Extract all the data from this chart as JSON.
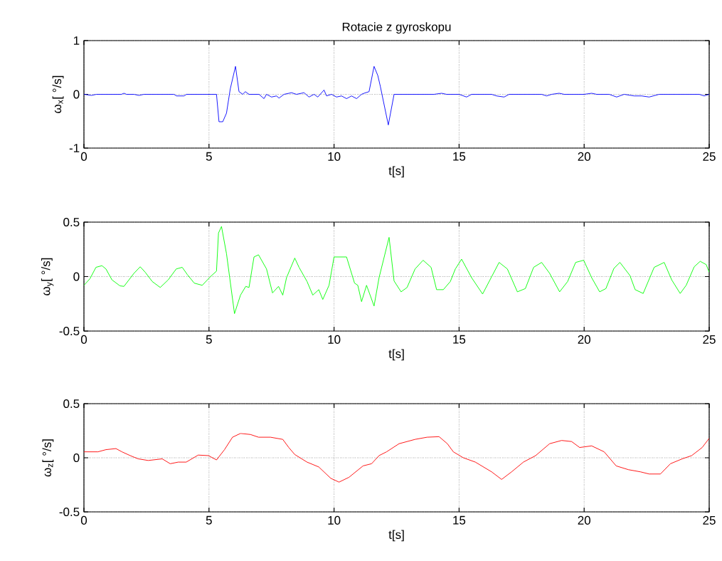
{
  "chart_data": [
    {
      "type": "line",
      "title": "Rotacie z gyroskopu",
      "xlabel": "t[s]",
      "ylabel": "ω$_{x}$[ °/s]",
      "color": "#0000ff",
      "grid": true,
      "xlim": [
        0,
        25
      ],
      "ylim": [
        -1,
        1
      ],
      "xticks": [
        0,
        5,
        10,
        15,
        20,
        25
      ],
      "yticks": [
        -1,
        0,
        1
      ],
      "x": [
        0,
        0.3,
        0.5,
        1.5,
        1.6,
        1.7,
        2.0,
        2.2,
        2.4,
        3.6,
        3.7,
        4.0,
        4.1,
        5.0,
        5.3,
        5.4,
        5.55,
        5.7,
        5.85,
        6.06,
        6.2,
        6.35,
        6.45,
        6.6,
        7.0,
        7.2,
        7.3,
        7.5,
        7.7,
        7.8,
        8.0,
        8.3,
        8.5,
        8.8,
        9.0,
        9.2,
        9.35,
        9.6,
        9.7,
        9.9,
        10.1,
        10.3,
        10.5,
        10.7,
        10.9,
        11.1,
        11.2,
        11.4,
        11.6,
        11.75,
        11.85,
        12.17,
        12.4,
        14.0,
        14.3,
        14.5,
        15.0,
        15.3,
        15.5,
        16.3,
        16.5,
        16.8,
        17.0,
        18.3,
        18.5,
        18.7,
        19.0,
        19.2,
        20.0,
        20.3,
        20.5,
        21.0,
        21.3,
        21.6,
        22.0,
        22.3,
        22.6,
        23.0,
        24.6,
        24.8,
        25
      ],
      "values": [
        0,
        -0.02,
        0,
        0,
        0.02,
        0,
        0,
        -0.02,
        0,
        0,
        -0.03,
        -0.03,
        0,
        0,
        0,
        -0.51,
        -0.51,
        -0.35,
        0.1,
        0.52,
        0.05,
        0,
        0.05,
        0,
        0,
        -0.08,
        0,
        -0.05,
        -0.03,
        -0.07,
        0,
        0.03,
        0,
        0.03,
        -0.05,
        0,
        -0.05,
        0.08,
        -0.03,
        0,
        -0.05,
        -0.03,
        -0.08,
        -0.03,
        -0.08,
        0,
        0.02,
        0.05,
        0.52,
        0.35,
        0.15,
        -0.57,
        0,
        0,
        0.02,
        0,
        0,
        -0.05,
        0,
        0,
        -0.03,
        -0.05,
        0,
        0,
        -0.03,
        0,
        0.02,
        0,
        0,
        0.02,
        0,
        0,
        -0.05,
        0,
        -0.03,
        -0.03,
        -0.05,
        0,
        0,
        -0.03,
        0
      ]
    },
    {
      "type": "line",
      "xlabel": "t[s]",
      "ylabel": "ω$_{y}$[ °/s]",
      "color": "#00ff00",
      "grid": true,
      "xlim": [
        0,
        25
      ],
      "ylim": [
        -0.5,
        0.5
      ],
      "xticks": [
        0,
        5,
        10,
        15,
        20,
        25
      ],
      "yticks": [
        -0.5,
        0,
        0.5
      ],
      "x": [
        0,
        0.24,
        0.48,
        0.72,
        0.88,
        1.12,
        1.44,
        1.6,
        2.0,
        2.25,
        2.45,
        2.73,
        3.05,
        3.37,
        3.69,
        3.93,
        4.13,
        4.41,
        4.73,
        5.06,
        5.3,
        5.38,
        5.5,
        5.7,
        6.02,
        6.26,
        6.47,
        6.6,
        6.8,
        6.98,
        7.3,
        7.54,
        7.78,
        7.95,
        8.1,
        8.43,
        8.6,
        8.92,
        9.15,
        9.39,
        9.55,
        9.8,
        10.0,
        10.5,
        10.82,
        10.95,
        11.1,
        11.3,
        11.6,
        11.8,
        12.2,
        12.4,
        12.68,
        12.92,
        13.24,
        13.56,
        13.88,
        14.1,
        14.37,
        14.65,
        14.85,
        15.1,
        15.5,
        15.94,
        16.6,
        16.93,
        17.33,
        17.65,
        17.98,
        18.3,
        18.62,
        19.02,
        19.34,
        19.66,
        19.98,
        20.3,
        20.62,
        20.87,
        21.19,
        21.43,
        21.83,
        22.04,
        22.36,
        22.8,
        23.2,
        23.5,
        23.84,
        24.08,
        24.4,
        24.64,
        24.88,
        25
      ],
      "values": [
        -0.08,
        -0.02,
        0.085,
        0.1,
        0.07,
        -0.03,
        -0.085,
        -0.09,
        0.03,
        0.09,
        0.04,
        -0.045,
        -0.1,
        -0.03,
        0.07,
        0.085,
        0.02,
        -0.06,
        -0.08,
        0,
        0.05,
        0.4,
        0.46,
        0.21,
        -0.34,
        -0.17,
        -0.09,
        -0.1,
        0.18,
        0.2,
        0.07,
        -0.15,
        -0.09,
        -0.17,
        -0.01,
        0.17,
        0.085,
        -0.045,
        -0.17,
        -0.12,
        -0.21,
        -0.08,
        0.18,
        0.18,
        -0.06,
        -0.08,
        -0.23,
        -0.08,
        -0.27,
        -0.01,
        0.36,
        -0.04,
        -0.14,
        -0.1,
        0.07,
        0.15,
        0.085,
        -0.12,
        -0.12,
        -0.045,
        0.07,
        0.16,
        -0.01,
        -0.16,
        0.13,
        0.07,
        -0.14,
        -0.11,
        0.085,
        0.13,
        0.03,
        -0.14,
        -0.045,
        0.13,
        0.15,
        -0.01,
        -0.14,
        -0.11,
        0.075,
        0.13,
        0.01,
        -0.12,
        -0.155,
        0.085,
        0.13,
        -0.03,
        -0.155,
        -0.08,
        0.09,
        0.14,
        0.11,
        0.04
      ]
    },
    {
      "type": "line",
      "xlabel": "t[s]",
      "ylabel": "ω$_{z}$[ °/s]",
      "color": "#ff0000",
      "grid": true,
      "xlim": [
        0,
        25
      ],
      "ylim": [
        -0.5,
        0.5
      ],
      "xticks": [
        0,
        5,
        10,
        15,
        20,
        25
      ],
      "yticks": [
        -0.5,
        0,
        0.5
      ],
      "x": [
        0,
        0.56,
        0.88,
        1.28,
        1.52,
        1.85,
        2.17,
        2.57,
        3.13,
        3.45,
        3.77,
        4.09,
        4.57,
        4.98,
        5.3,
        5.62,
        5.94,
        6.26,
        6.66,
        6.98,
        7.46,
        7.95,
        8.19,
        8.43,
        8.92,
        9.39,
        9.87,
        10.2,
        10.6,
        11.16,
        11.5,
        11.8,
        12.1,
        12.6,
        13.24,
        13.72,
        14.2,
        14.53,
        14.77,
        15.17,
        15.65,
        16.3,
        16.7,
        17.1,
        17.57,
        18.06,
        18.62,
        19.1,
        19.5,
        19.82,
        20.3,
        20.8,
        21.28,
        21.77,
        22.25,
        22.6,
        23.05,
        23.45,
        23.92,
        24.3,
        24.72,
        25
      ],
      "values": [
        0.055,
        0.055,
        0.075,
        0.085,
        0.055,
        0.02,
        -0.01,
        -0.025,
        -0.01,
        -0.055,
        -0.04,
        -0.04,
        0.025,
        0.02,
        -0.02,
        0.075,
        0.19,
        0.225,
        0.215,
        0.19,
        0.19,
        0.17,
        0.095,
        0.03,
        -0.04,
        -0.085,
        -0.19,
        -0.225,
        -0.18,
        -0.075,
        -0.055,
        0.02,
        0.055,
        0.13,
        0.17,
        0.19,
        0.195,
        0.13,
        0.055,
        0,
        -0.04,
        -0.13,
        -0.2,
        -0.13,
        -0.04,
        0.02,
        0.13,
        0.16,
        0.15,
        0.095,
        0.11,
        0.055,
        -0.075,
        -0.11,
        -0.13,
        -0.15,
        -0.15,
        -0.055,
        -0.01,
        0.02,
        0.095,
        0.18
      ]
    }
  ]
}
